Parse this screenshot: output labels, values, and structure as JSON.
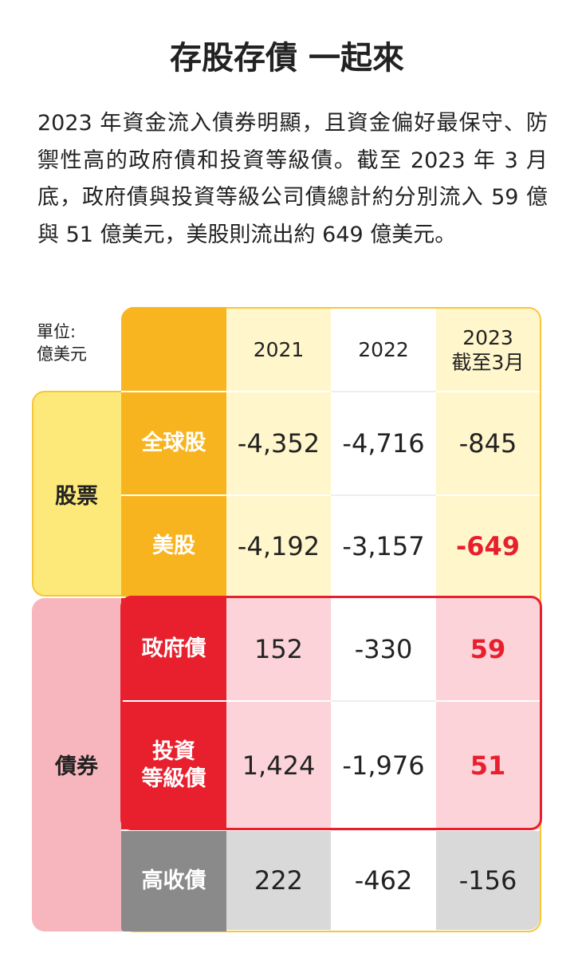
{
  "title": "存股存債 一起來",
  "description": "2023 年資金流入債券明顯，且資金偏好最保守、防禦性高的政府債和投資等級債。截至 2023 年 3 月底，政府債與投資等級公司債總計約分別流入 59 億與 51 億美元，美股則流出約 649 億美元。",
  "table": {
    "unit": [
      "單位:",
      "億美元"
    ],
    "columns": [
      [
        "2021"
      ],
      [
        "2022"
      ],
      [
        "2023",
        "截至3月"
      ]
    ],
    "groups": [
      {
        "label": "股票",
        "rows": [
          {
            "label": [
              "全球股"
            ],
            "values": [
              "-4,352",
              "-4,716",
              "-845"
            ]
          },
          {
            "label": [
              "美股"
            ],
            "values": [
              "-4,192",
              "-3,157",
              "-649"
            ]
          }
        ]
      },
      {
        "label": "債券",
        "rows": [
          {
            "label": [
              "政府債"
            ],
            "values": [
              "152",
              "-330",
              "59"
            ]
          },
          {
            "label": [
              "投資",
              "等級債"
            ],
            "values": [
              "1,424",
              "-1,976",
              "51"
            ]
          },
          {
            "label": [
              "高收債"
            ],
            "values": [
              "222",
              "-462",
              "-156"
            ]
          }
        ]
      }
    ]
  }
}
